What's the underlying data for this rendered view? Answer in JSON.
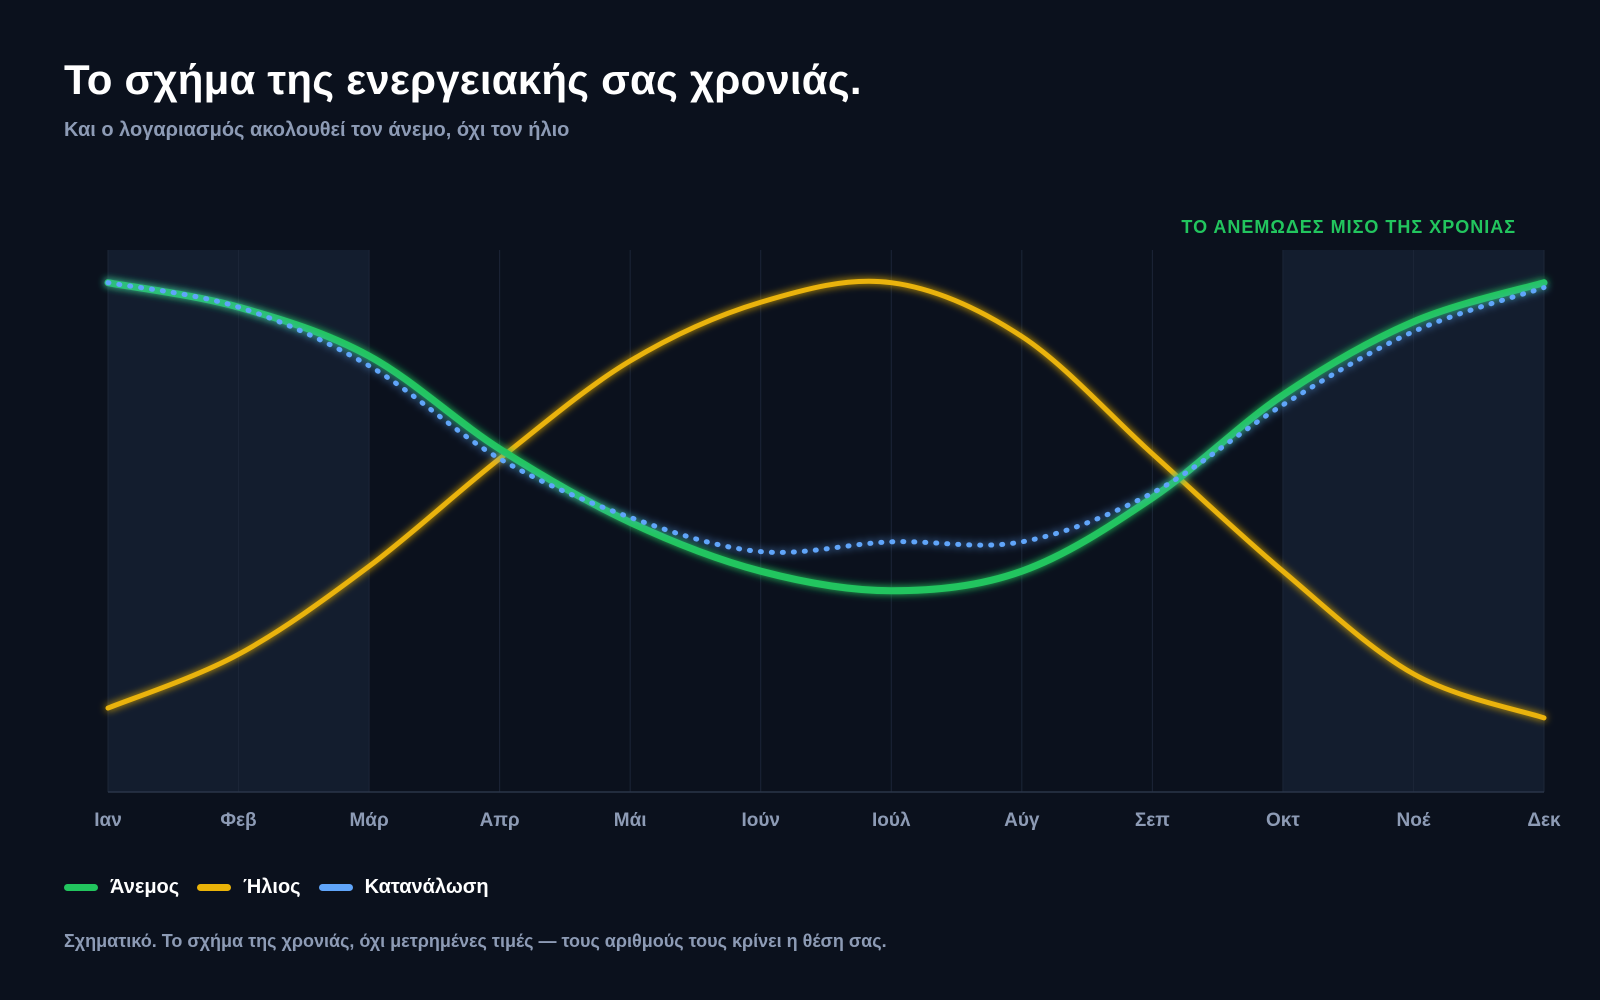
{
  "title": "Το σχήμα της ενεργειακής σας χρονιάς.",
  "subtitle": "Και ο λογαριασμός ακολουθεί τον άνεμο, όχι τον ήλιο",
  "annotation": "ΤΟ ΑΝΕΜΩΔΕΣ ΜΙΣΟ ΤΗΣ ΧΡΟΝΙΑΣ",
  "footnote": "Σχηματικό. Το σχήμα της χρονιάς, όχι μετρημένες τιμές — τους αριθμούς τους κρίνει η θέση σας.",
  "colors": {
    "background": "#0b111d",
    "wind": "#22c55e",
    "sun": "#eab308",
    "consumption": "#60a5fa",
    "shade": "#131d2e",
    "axis_text": "#8d9bb5"
  },
  "chart_data": {
    "type": "line",
    "title": "Το σχήμα της ενεργειακής σας χρονιάς.",
    "subtitle": "Και ο λογαριασμός ακολουθεί τον άνεμο, όχι τον ήλιο",
    "categories": [
      "Ιαν",
      "Φεβ",
      "Μάρ",
      "Απρ",
      "Μάι",
      "Ιούν",
      "Ιούλ",
      "Αύγ",
      "Σεπ",
      "Οκτ",
      "Νοέ",
      "Δεκ"
    ],
    "ylim": [
      0,
      1
    ],
    "y_axis_labels": false,
    "grid": "vertical",
    "legend_position": "bottom-left",
    "shaded_months": [
      "Ιαν",
      "Φεβ",
      "Μάρ",
      "Οκτ",
      "Νοέ",
      "Δεκ"
    ],
    "shaded_label": "ΤΟ ΑΝΕΜΩΔΕΣ ΜΙΣΟ ΤΗΣ ΧΡΟΝΙΑΣ",
    "series": [
      {
        "name": "Άνεμος",
        "key": "wind",
        "style": "solid-thick",
        "values": [
          0.97,
          0.92,
          0.82,
          0.63,
          0.48,
          0.38,
          0.34,
          0.38,
          0.53,
          0.74,
          0.89,
          0.97
        ]
      },
      {
        "name": "Ήλιος",
        "key": "sun",
        "style": "solid",
        "values": [
          0.1,
          0.21,
          0.39,
          0.61,
          0.81,
          0.93,
          0.97,
          0.86,
          0.62,
          0.38,
          0.17,
          0.08
        ]
      },
      {
        "name": "Κατανάλωση",
        "key": "consumption",
        "style": "dotted",
        "values": [
          0.97,
          0.92,
          0.8,
          0.61,
          0.49,
          0.42,
          0.44,
          0.44,
          0.54,
          0.72,
          0.87,
          0.96
        ]
      }
    ]
  }
}
